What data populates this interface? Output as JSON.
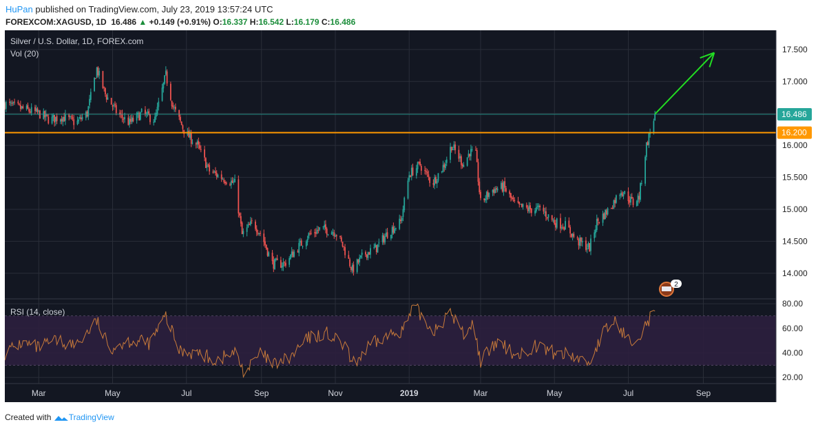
{
  "header": {
    "author": "HuPan",
    "published": "published on TradingView.com, July 23, 2019 13:57:24 UTC",
    "symbol": "FOREXCOM:XAGUSD, 1D",
    "last": "16.486",
    "change": "+0.149 (+0.91%)",
    "o_label": "O:",
    "o_value": "16.337",
    "h_label": "H:",
    "h_value": "16.542",
    "l_label": "L:",
    "l_value": "16.179",
    "c_label": "C:",
    "c_value": "16.486"
  },
  "footer": {
    "created_with": "Created with",
    "brand": "TradingView"
  },
  "colors": {
    "background": "#131722",
    "up": "#26a69a",
    "down": "#ef5350",
    "support": "#ff9800",
    "arrow": "#22dd22",
    "rsi_line": "#c97b3a",
    "rsi_band": "#2c1f3e"
  },
  "chart_data": [
    {
      "type": "candlestick",
      "title": "Silver / U.S. Dollar, 1D, FOREX.com",
      "indicator_label": "Vol (20)",
      "y_ticks": [
        "17.500",
        "17.000",
        "16.500",
        "16.000",
        "15.500",
        "15.000",
        "14.500",
        "14.000"
      ],
      "ylim": [
        13.6,
        17.8
      ],
      "x_ticks": [
        "Mar",
        "May",
        "Jul",
        "Sep",
        "Nov",
        "2019",
        "Mar",
        "May",
        "Jul",
        "Sep"
      ],
      "date_range": [
        "2018-02-01",
        "2019-10-31"
      ],
      "last_price": 16.486,
      "last_price_label": "16.486",
      "support_level": 16.2,
      "support_label": "16.200",
      "arrow": {
        "from_date": "2019-07-23",
        "from_price": 16.49,
        "to_date": "2019-09-10",
        "to_price": 17.45
      },
      "event_badge": "2",
      "anchors": [
        [
          "2018-02-01",
          16.65
        ],
        [
          "2018-02-10",
          16.6
        ],
        [
          "2018-02-20",
          16.55
        ],
        [
          "2018-03-01",
          16.5
        ],
        [
          "2018-03-10",
          16.4
        ],
        [
          "2018-03-20",
          16.45
        ],
        [
          "2018-04-01",
          16.35
        ],
        [
          "2018-04-10",
          16.5
        ],
        [
          "2018-04-18",
          17.2
        ],
        [
          "2018-04-25",
          16.8
        ],
        [
          "2018-05-05",
          16.5
        ],
        [
          "2018-05-15",
          16.35
        ],
        [
          "2018-05-25",
          16.5
        ],
        [
          "2018-06-05",
          16.4
        ],
        [
          "2018-06-14",
          17.1
        ],
        [
          "2018-06-20",
          16.6
        ],
        [
          "2018-06-30",
          16.2
        ],
        [
          "2018-07-10",
          16.0
        ],
        [
          "2018-07-20",
          15.6
        ],
        [
          "2018-07-30",
          15.5
        ],
        [
          "2018-08-10",
          15.4
        ],
        [
          "2018-08-16",
          14.6
        ],
        [
          "2018-08-25",
          14.8
        ],
        [
          "2018-09-01",
          14.6
        ],
        [
          "2018-09-10",
          14.15
        ],
        [
          "2018-09-20",
          14.15
        ],
        [
          "2018-10-01",
          14.4
        ],
        [
          "2018-10-10",
          14.6
        ],
        [
          "2018-10-20",
          14.7
        ],
        [
          "2018-11-01",
          14.65
        ],
        [
          "2018-11-08",
          14.4
        ],
        [
          "2018-11-15",
          14.05
        ],
        [
          "2018-11-25",
          14.3
        ],
        [
          "2018-12-05",
          14.4
        ],
        [
          "2018-12-15",
          14.65
        ],
        [
          "2018-12-25",
          14.8
        ],
        [
          "2019-01-01",
          15.55
        ],
        [
          "2019-01-10",
          15.7
        ],
        [
          "2019-01-20",
          15.4
        ],
        [
          "2019-01-30",
          15.7
        ],
        [
          "2019-02-05",
          16.0
        ],
        [
          "2019-02-15",
          15.7
        ],
        [
          "2019-02-20",
          15.9
        ],
        [
          "2019-02-25",
          15.85
        ],
        [
          "2019-03-01",
          15.1
        ],
        [
          "2019-03-10",
          15.3
        ],
        [
          "2019-03-20",
          15.35
        ],
        [
          "2019-03-30",
          15.05
        ],
        [
          "2019-04-10",
          15.0
        ],
        [
          "2019-04-20",
          15.0
        ],
        [
          "2019-05-01",
          14.8
        ],
        [
          "2019-05-10",
          14.75
        ],
        [
          "2019-05-20",
          14.5
        ],
        [
          "2019-05-30",
          14.4
        ],
        [
          "2019-06-05",
          14.8
        ],
        [
          "2019-06-15",
          15.0
        ],
        [
          "2019-06-25",
          15.3
        ],
        [
          "2019-07-05",
          15.1
        ],
        [
          "2019-07-10",
          15.2
        ],
        [
          "2019-07-16",
          16.0
        ],
        [
          "2019-07-23",
          16.486
        ]
      ]
    },
    {
      "type": "line",
      "title": "RSI (14, close)",
      "y_ticks": [
        "80.00",
        "60.00",
        "40.00",
        "20.00"
      ],
      "ylim": [
        15,
        84
      ],
      "upper_band": 70,
      "lower_band": 30,
      "anchors": [
        [
          "2018-02-01",
          40
        ],
        [
          "2018-02-15",
          48
        ],
        [
          "2018-03-01",
          44
        ],
        [
          "2018-03-15",
          50
        ],
        [
          "2018-04-01",
          46
        ],
        [
          "2018-04-18",
          66
        ],
        [
          "2018-04-28",
          44
        ],
        [
          "2018-05-15",
          50
        ],
        [
          "2018-06-01",
          48
        ],
        [
          "2018-06-14",
          70
        ],
        [
          "2018-06-25",
          42
        ],
        [
          "2018-07-10",
          40
        ],
        [
          "2018-07-25",
          34
        ],
        [
          "2018-08-10",
          40
        ],
        [
          "2018-08-18",
          24
        ],
        [
          "2018-09-01",
          40
        ],
        [
          "2018-09-10",
          30
        ],
        [
          "2018-09-25",
          36
        ],
        [
          "2018-10-10",
          52
        ],
        [
          "2018-10-25",
          56
        ],
        [
          "2018-11-10",
          44
        ],
        [
          "2018-11-15",
          30
        ],
        [
          "2018-11-30",
          46
        ],
        [
          "2018-12-15",
          54
        ],
        [
          "2018-12-28",
          60
        ],
        [
          "2019-01-05",
          78
        ],
        [
          "2019-01-20",
          58
        ],
        [
          "2019-02-05",
          72
        ],
        [
          "2019-02-15",
          55
        ],
        [
          "2019-02-22",
          65
        ],
        [
          "2019-03-01",
          34
        ],
        [
          "2019-03-15",
          48
        ],
        [
          "2019-04-01",
          38
        ],
        [
          "2019-04-15",
          46
        ],
        [
          "2019-05-01",
          40
        ],
        [
          "2019-05-15",
          38
        ],
        [
          "2019-05-30",
          32
        ],
        [
          "2019-06-10",
          56
        ],
        [
          "2019-06-20",
          66
        ],
        [
          "2019-07-01",
          50
        ],
        [
          "2019-07-10",
          55
        ],
        [
          "2019-07-23",
          74
        ]
      ]
    }
  ]
}
